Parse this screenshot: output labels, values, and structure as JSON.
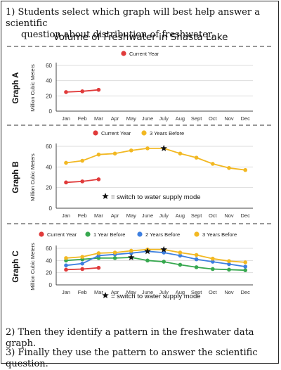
{
  "instructions": {
    "step1_line1": "1) Students select which graph will best help answer a scientific",
    "step1_line2": "question about distribution of freshwater.",
    "step2": "2) Then they identify a pattern in the freshwater data graph.",
    "step3": "3) Finally they use the pattern to answer the scientific question."
  },
  "chart_title": "Volume of Freshwater in Shasta Lake",
  "colors": {
    "current_year": "#e03a3a",
    "one_year_before": "#37a84f",
    "two_years_before": "#3d7fe0",
    "three_years_before": "#f2b822",
    "grid": "#dddddd",
    "axis": "#444444"
  },
  "chart_data": [
    {
      "type": "line",
      "graph_label": "Graph A",
      "ylabel": "Million Cubic Meters",
      "ylim": [
        0,
        60
      ],
      "yticks": [
        0,
        20,
        40,
        60
      ],
      "categories": [
        "Jan",
        "Feb",
        "Mar",
        "Apr",
        "May",
        "June",
        "July",
        "Aug",
        "Sept",
        "Oct",
        "Nov",
        "Dec"
      ],
      "legend_position": "top",
      "series": [
        {
          "name": "Current Year",
          "color_key": "current_year",
          "values": [
            25,
            26,
            28,
            null,
            null,
            null,
            null,
            null,
            null,
            null,
            null,
            null
          ]
        }
      ],
      "star_markers": [],
      "annotation": ""
    },
    {
      "type": "line",
      "graph_label": "Graph B",
      "ylabel": "Million Cubic Meters",
      "ylim": [
        0,
        60
      ],
      "yticks": [
        0,
        20,
        40,
        60
      ],
      "categories": [
        "Jan",
        "Feb",
        "Mar",
        "Apr",
        "May",
        "June",
        "July",
        "Aug",
        "Sept",
        "Oct",
        "Nov",
        "Dec"
      ],
      "legend_position": "top",
      "series": [
        {
          "name": "Current Year",
          "color_key": "current_year",
          "values": [
            25,
            26,
            28,
            null,
            null,
            null,
            null,
            null,
            null,
            null,
            null,
            null
          ]
        },
        {
          "name": "3 Years Before",
          "color_key": "three_years_before",
          "values": [
            44,
            46,
            52,
            53,
            56,
            58,
            58,
            53,
            49,
            43,
            39,
            37
          ]
        }
      ],
      "star_markers": [
        {
          "series": 1,
          "index": 6
        }
      ],
      "annotation": "= switch to water supply mode"
    },
    {
      "type": "line",
      "graph_label": "Graph C",
      "ylabel": "Million Cubic Meters",
      "ylim": [
        0,
        60
      ],
      "yticks": [
        0,
        20,
        40,
        60
      ],
      "categories": [
        "Jan",
        "Feb",
        "Mar",
        "Apr",
        "May",
        "June",
        "July",
        "Aug",
        "Sept",
        "Oct",
        "Nov",
        "Dec"
      ],
      "legend_position": "top",
      "series": [
        {
          "name": "Current Year",
          "color_key": "current_year",
          "values": [
            25,
            26,
            28,
            null,
            null,
            null,
            null,
            null,
            null,
            null,
            null,
            null
          ]
        },
        {
          "name": "1 Year Before",
          "color_key": "one_year_before",
          "values": [
            40,
            42,
            44,
            44,
            45,
            40,
            38,
            33,
            29,
            26,
            25,
            24
          ]
        },
        {
          "name": "2 Years Before",
          "color_key": "two_years_before",
          "values": [
            32,
            35,
            48,
            50,
            52,
            55,
            53,
            48,
            42,
            38,
            34,
            30
          ]
        },
        {
          "name": "3 Years Before",
          "color_key": "three_years_before",
          "values": [
            44,
            46,
            52,
            53,
            56,
            58,
            58,
            53,
            49,
            43,
            39,
            37
          ]
        }
      ],
      "star_markers": [
        {
          "series": 1,
          "index": 4
        },
        {
          "series": 2,
          "index": 5
        },
        {
          "series": 3,
          "index": 6
        }
      ],
      "annotation": "= switch to water supply mode"
    }
  ]
}
